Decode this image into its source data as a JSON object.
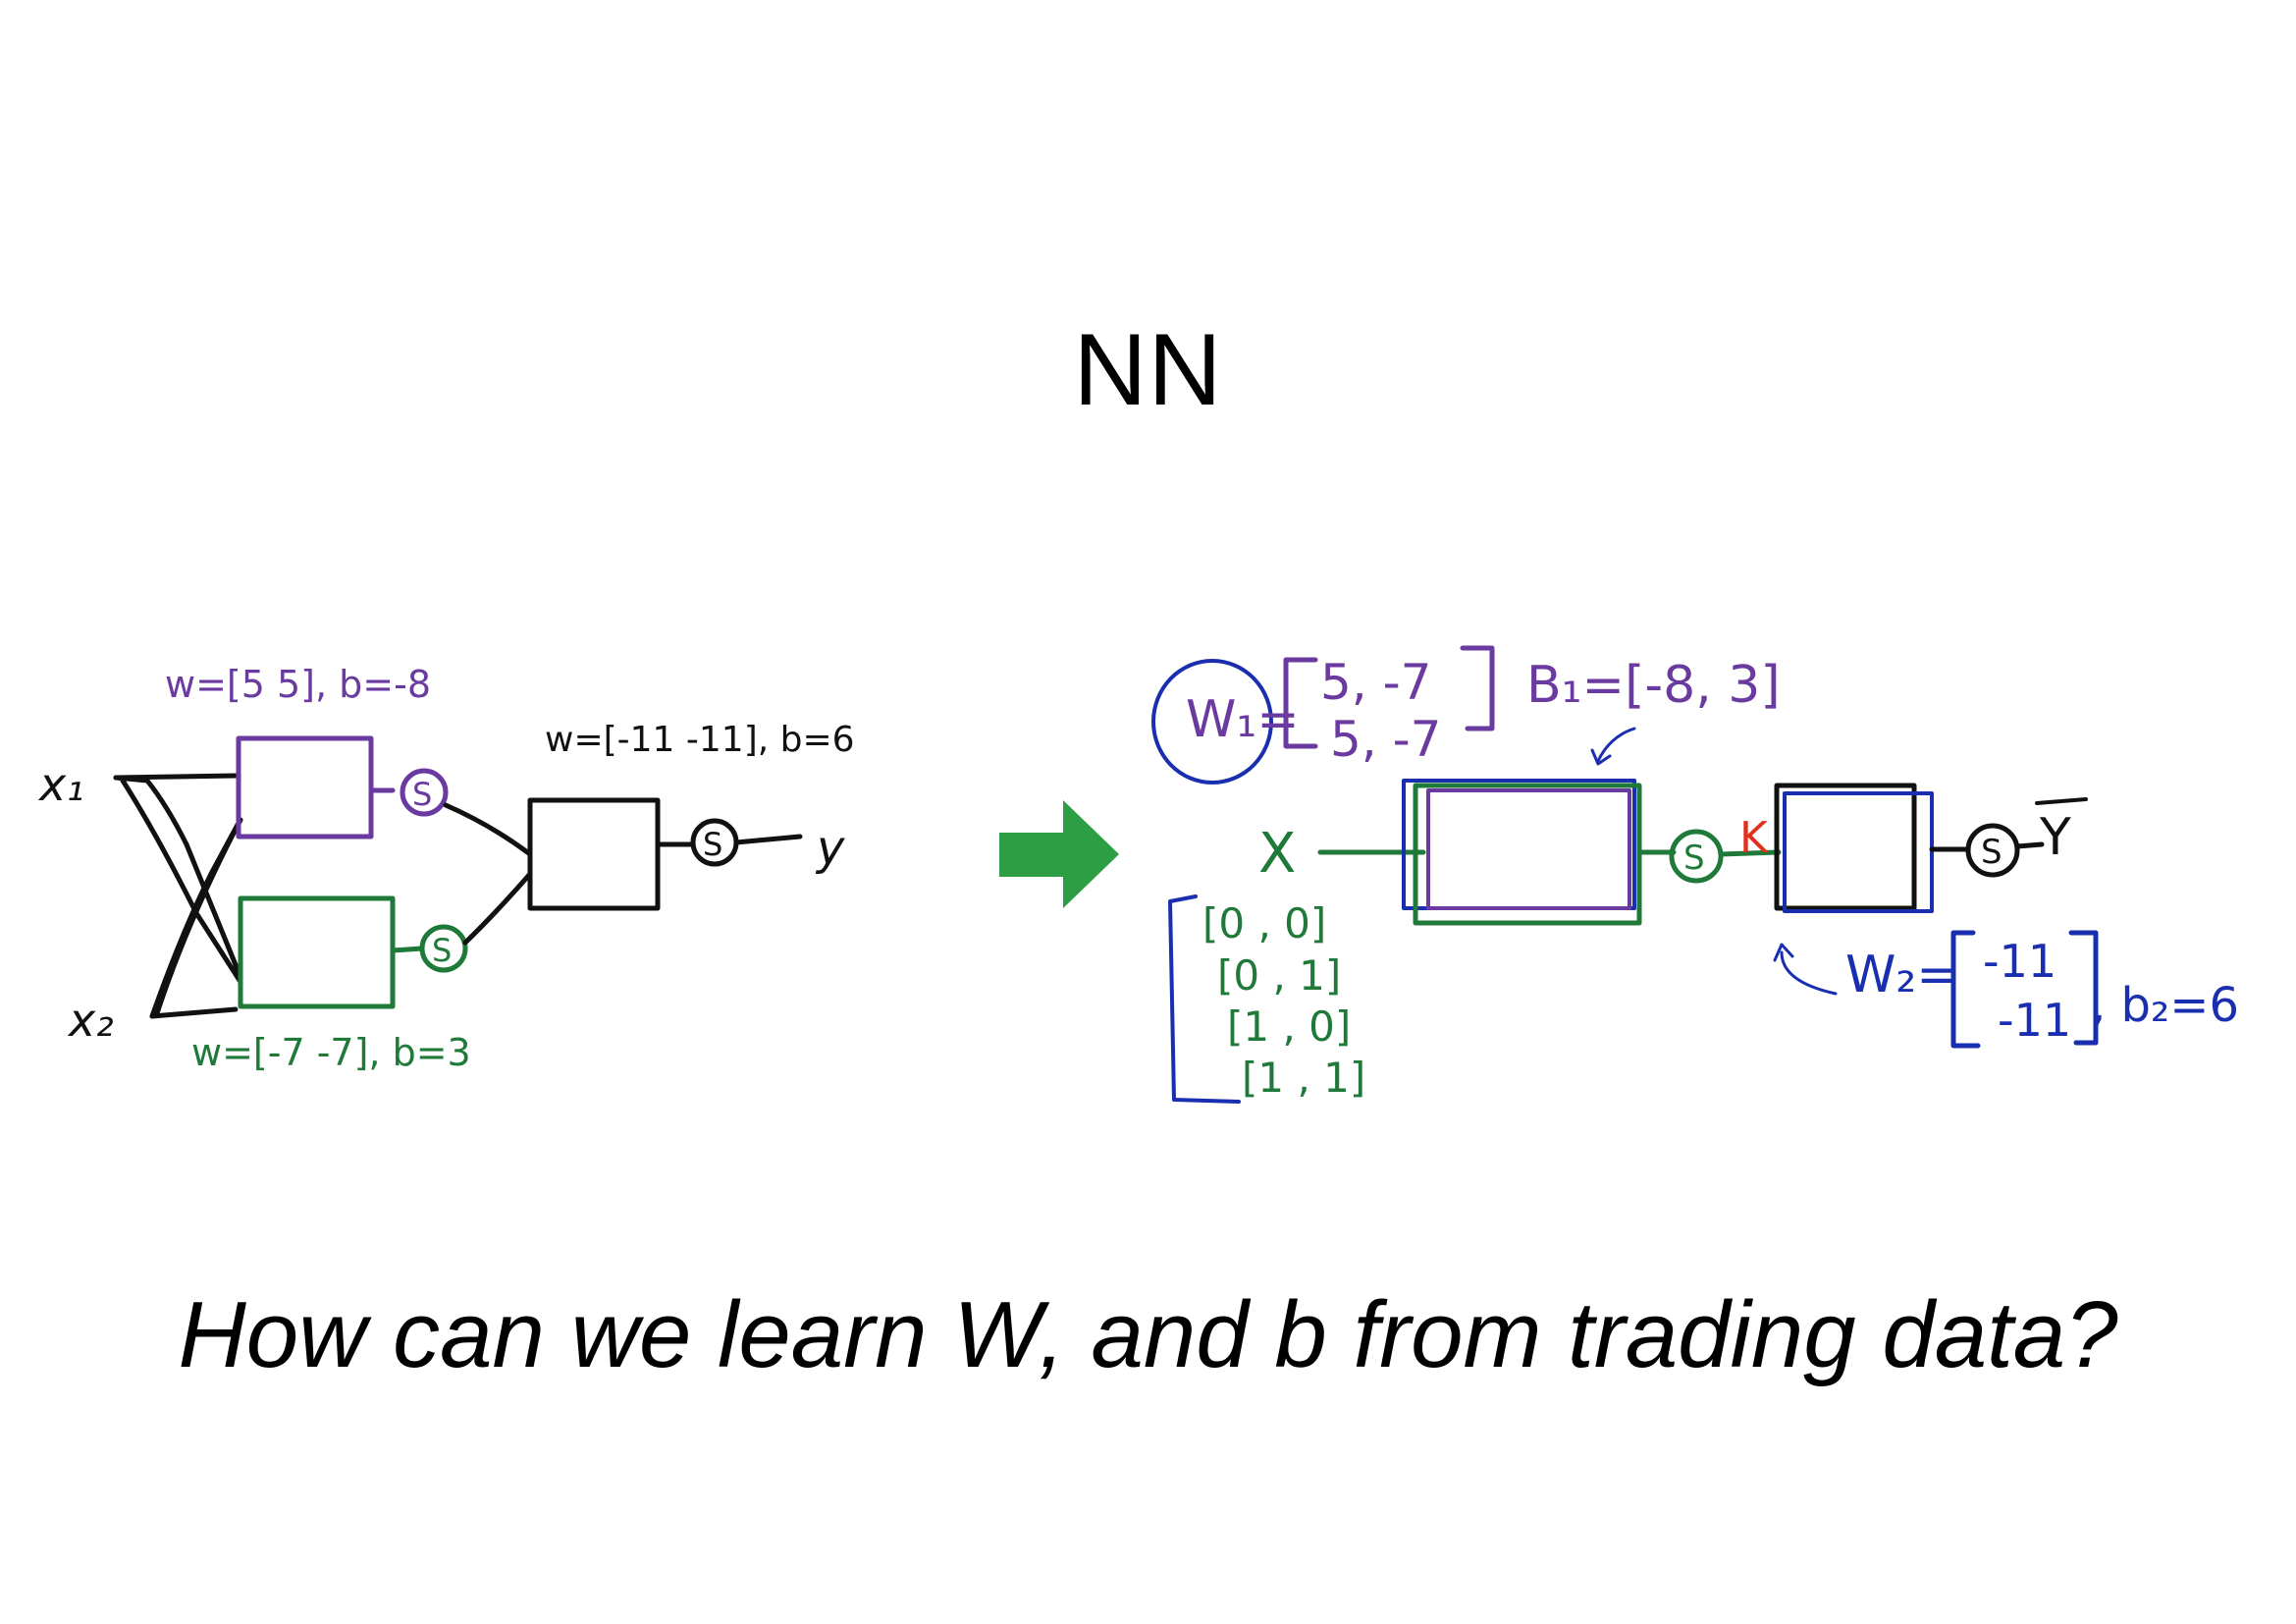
{
  "slide": {
    "title": "NN",
    "question": "How can we learn W, and b from trading data?"
  },
  "colors": {
    "ink_black": "#111111",
    "ink_purple": "#6a3aa0",
    "ink_green": "#1f7a3a",
    "ink_blue": "#1a2fb0",
    "ink_red": "#e0301e",
    "arrow_green": "#2e9e44"
  },
  "left_diagram": {
    "input_1": "x₁",
    "input_2": "x₂",
    "neuron_top_label": "w=[5 5], b=-8",
    "neuron_bottom_label": "w=[-7 -7], b=3",
    "output_neuron_label": "w=[-11 -11], b=6",
    "sigmoid": "S",
    "output": "y"
  },
  "right_diagram": {
    "w1_label": "W₁=",
    "w1_row1": "5, -7",
    "w1_row2": "5, -7",
    "b1_label": "B₁=[-8, 3]",
    "input": "X",
    "k_label": "K",
    "output": "Y",
    "w2_label": "W₂=",
    "w2_row1": "-11",
    "w2_row2": "-11",
    "b2_label": ", b₂=6",
    "data_rows": [
      "[0 , 0]",
      "[0 , 1]",
      "[1 , 0]",
      "[1 , 1]"
    ]
  }
}
